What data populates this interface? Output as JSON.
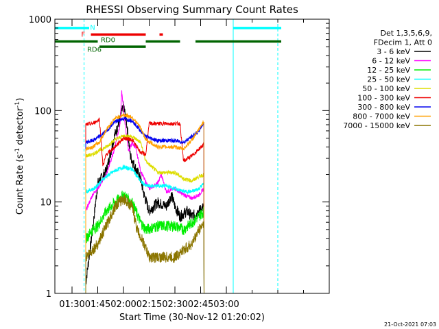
{
  "chart_data": {
    "type": "line",
    "title": "RHESSI Observing Summary Count Rates",
    "xlabel": "Start Time (30-Nov-12 01:20:02)",
    "ylabel_main": "Count Rate (s",
    "ylabel_sup1": "-1",
    "ylabel_mid": " detector",
    "ylabel_sup2": "-1",
    "ylabel_end": ")",
    "y_scale": "log",
    "ylim": [
      1,
      1000
    ],
    "xlim_minutes": [
      20,
      180
    ],
    "x_tick_minutes": [
      30,
      45,
      60,
      75,
      90,
      105,
      120,
      135,
      150,
      165,
      180
    ],
    "x_tick_labels": [
      "01:30",
      "01:45",
      "02:00",
      "02:15",
      "02:30",
      "02:45",
      "03:00"
    ],
    "x_tick_label_minutes": [
      30,
      45,
      60,
      75,
      90,
      105,
      120
    ],
    "y_tick_values": [
      1,
      10,
      100,
      1000
    ],
    "y_tick_labels": [
      "1",
      "10",
      "100",
      "1000"
    ],
    "legend_header": [
      "Det 1,3,5,6,9,",
      "FDecim 1, Att 0"
    ],
    "legend_position": "right",
    "timestamp": "21-Oct-2021 07:03",
    "flags": [
      {
        "label": "N",
        "color": "#00ffff",
        "y": 800,
        "segments": [
          [
            20,
            40
          ],
          [
            124,
            152
          ]
        ]
      },
      {
        "label": "F",
        "color": "#ee0000",
        "y": 680,
        "segments": [
          [
            41,
            73
          ],
          [
            81,
            83
          ]
        ]
      },
      {
        "label": "RD0",
        "color": "#006400",
        "y": 570,
        "segments": [
          [
            20,
            45
          ],
          [
            73,
            93
          ],
          [
            102,
            152
          ]
        ]
      },
      {
        "label": "RD6",
        "color": "#006400",
        "y": 500,
        "segments": [
          [
            46,
            73
          ]
        ]
      }
    ],
    "vlines": [
      {
        "x": 37,
        "color": "#00ffff",
        "style": "dashed"
      },
      {
        "x": 124,
        "color": "#00ffff",
        "style": "solid"
      },
      {
        "x": 150,
        "color": "#00ffff",
        "style": "dashed"
      }
    ],
    "data_window_minutes": [
      38,
      130
    ],
    "series": [
      {
        "name": "3 - 6 keV",
        "color": "#000000",
        "values": [
          [
            38,
            1.3
          ],
          [
            42,
            5
          ],
          [
            45,
            16
          ],
          [
            50,
            22
          ],
          [
            55,
            55
          ],
          [
            58,
            80
          ],
          [
            60,
            115
          ],
          [
            62,
            70
          ],
          [
            64,
            32
          ],
          [
            66,
            26
          ],
          [
            70,
            18
          ],
          [
            72,
            12
          ],
          [
            75,
            8
          ],
          [
            80,
            10
          ],
          [
            85,
            9
          ],
          [
            88,
            12
          ],
          [
            90,
            9
          ],
          [
            93,
            7
          ],
          [
            97,
            8
          ],
          [
            100,
            7
          ],
          [
            104,
            8
          ],
          [
            107,
            9
          ]
        ]
      },
      {
        "name": "6 - 12 keV",
        "color": "#ff00ff",
        "values": [
          [
            38,
            8
          ],
          [
            42,
            12
          ],
          [
            46,
            15
          ],
          [
            50,
            20
          ],
          [
            54,
            34
          ],
          [
            58,
            70
          ],
          [
            59,
            160
          ],
          [
            61,
            70
          ],
          [
            63,
            36
          ],
          [
            65,
            44
          ],
          [
            67,
            40
          ],
          [
            70,
            22
          ],
          [
            72,
            18
          ],
          [
            75,
            14
          ],
          [
            80,
            16
          ],
          [
            82,
            20
          ],
          [
            85,
            13
          ],
          [
            90,
            14
          ],
          [
            95,
            12
          ],
          [
            100,
            11
          ],
          [
            104,
            12
          ],
          [
            107,
            14
          ]
        ]
      },
      {
        "name": "12 - 25 keV",
        "color": "#00ee00",
        "values": [
          [
            38,
            4
          ],
          [
            42,
            5
          ],
          [
            45,
            5.5
          ],
          [
            50,
            8
          ],
          [
            55,
            10
          ],
          [
            60,
            12
          ],
          [
            65,
            10
          ],
          [
            70,
            6
          ],
          [
            73,
            5
          ],
          [
            80,
            5.5
          ],
          [
            90,
            5.5
          ],
          [
            95,
            5
          ],
          [
            100,
            6
          ],
          [
            104,
            7
          ],
          [
            107,
            8
          ]
        ]
      },
      {
        "name": "25 - 50 keV",
        "color": "#00ffff",
        "values": [
          [
            38,
            13
          ],
          [
            43,
            14
          ],
          [
            47,
            17
          ],
          [
            50,
            19
          ],
          [
            55,
            22
          ],
          [
            60,
            24
          ],
          [
            65,
            23
          ],
          [
            70,
            17
          ],
          [
            73,
            15
          ],
          [
            80,
            15
          ],
          [
            85,
            15
          ],
          [
            90,
            14
          ],
          [
            95,
            13
          ],
          [
            100,
            13
          ],
          [
            104,
            14
          ],
          [
            107,
            16
          ]
        ]
      },
      {
        "name": "50 - 100 keV",
        "color": "#dddd00",
        "values": [
          [
            38,
            32
          ],
          [
            42,
            33
          ],
          [
            45,
            36
          ],
          [
            50,
            40
          ],
          [
            55,
            48
          ],
          [
            60,
            53
          ],
          [
            65,
            52
          ],
          [
            70,
            45
          ],
          [
            73,
            28
          ],
          [
            80,
            21
          ],
          [
            90,
            21
          ],
          [
            95,
            18
          ],
          [
            100,
            17
          ],
          [
            104,
            19
          ],
          [
            107,
            20
          ]
        ]
      },
      {
        "name": "100 - 300 keV",
        "color": "#ee0000",
        "values": [
          [
            38,
            70
          ],
          [
            42,
            72
          ],
          [
            46,
            80
          ],
          [
            48,
            25
          ],
          [
            50,
            33
          ],
          [
            55,
            40
          ],
          [
            60,
            50
          ],
          [
            65,
            48
          ],
          [
            70,
            35
          ],
          [
            73,
            33
          ],
          [
            75,
            72
          ],
          [
            80,
            72
          ],
          [
            90,
            72
          ],
          [
            93,
            72
          ],
          [
            95,
            28
          ],
          [
            100,
            32
          ],
          [
            104,
            38
          ],
          [
            107,
            43
          ]
        ]
      },
      {
        "name": "300 - 800 keV",
        "color": "#0000ee",
        "values": [
          [
            38,
            45
          ],
          [
            42,
            47
          ],
          [
            46,
            52
          ],
          [
            50,
            60
          ],
          [
            55,
            75
          ],
          [
            60,
            82
          ],
          [
            65,
            78
          ],
          [
            70,
            60
          ],
          [
            73,
            52
          ],
          [
            80,
            47
          ],
          [
            90,
            47
          ],
          [
            95,
            45
          ],
          [
            100,
            52
          ],
          [
            104,
            60
          ],
          [
            107,
            75
          ]
        ]
      },
      {
        "name": "800 - 7000 keV",
        "color": "#ffa000",
        "values": [
          [
            38,
            38
          ],
          [
            42,
            40
          ],
          [
            46,
            45
          ],
          [
            50,
            62
          ],
          [
            55,
            82
          ],
          [
            60,
            90
          ],
          [
            65,
            85
          ],
          [
            70,
            65
          ],
          [
            73,
            48
          ],
          [
            80,
            40
          ],
          [
            90,
            40
          ],
          [
            95,
            38
          ],
          [
            100,
            48
          ],
          [
            104,
            62
          ],
          [
            107,
            78
          ]
        ]
      },
      {
        "name": "7000 - 15000 keV",
        "color": "#8b7500",
        "values": [
          [
            38,
            2.5
          ],
          [
            42,
            3
          ],
          [
            45,
            3.5
          ],
          [
            50,
            5.5
          ],
          [
            55,
            9
          ],
          [
            60,
            11
          ],
          [
            65,
            9
          ],
          [
            68,
            5
          ],
          [
            72,
            3.5
          ],
          [
            75,
            2.5
          ],
          [
            80,
            2.5
          ],
          [
            90,
            2.5
          ],
          [
            95,
            3
          ],
          [
            100,
            3.5
          ],
          [
            104,
            5
          ],
          [
            107,
            6
          ]
        ]
      }
    ]
  }
}
